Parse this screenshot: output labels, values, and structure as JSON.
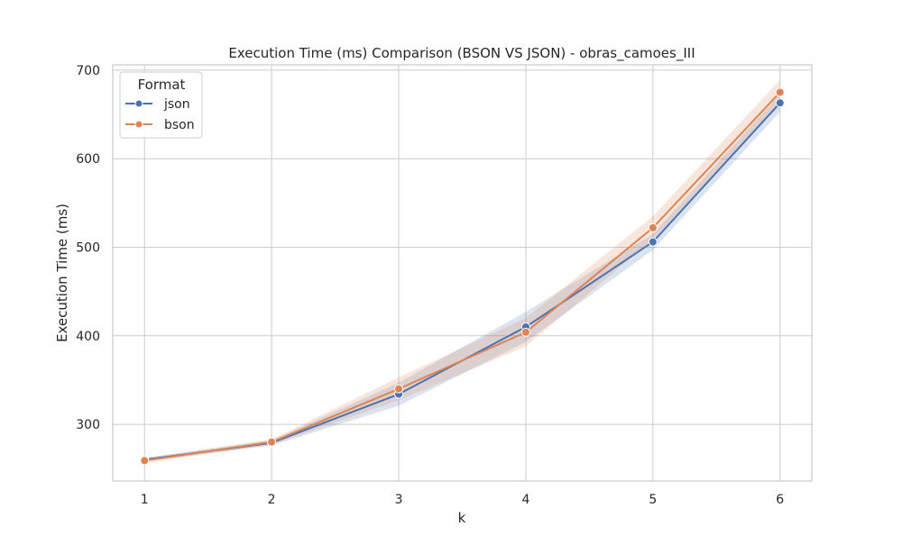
{
  "chart_data": {
    "type": "line",
    "title": "Execution Time (ms) Comparison (BSON VS JSON) - obras_camoes_III",
    "xlabel": "k",
    "ylabel": "Execution Time (ms)",
    "x": [
      1,
      2,
      3,
      4,
      5,
      6
    ],
    "xticks": [
      "1",
      "2",
      "3",
      "4",
      "5",
      "6"
    ],
    "yticks": [
      "300",
      "400",
      "500",
      "600",
      "700"
    ],
    "xlim": [
      0.75,
      6.25
    ],
    "ylim": [
      236,
      706
    ],
    "grid": true,
    "legend": {
      "title": "Format",
      "placement": "top-left"
    },
    "series": [
      {
        "name": "json",
        "color": "#4c72b0",
        "values": [
          260,
          279,
          334,
          410,
          506,
          663
        ],
        "ci_low": [
          258,
          276,
          321,
          393,
          497,
          653
        ],
        "ci_high": [
          262,
          282,
          347,
          427,
          515,
          673
        ]
      },
      {
        "name": "bson",
        "color": "#dd8452",
        "values": [
          259,
          280,
          340,
          404,
          522,
          675
        ],
        "ci_low": [
          256,
          277,
          327,
          388,
          509,
          661
        ],
        "ci_high": [
          262,
          283,
          353,
          420,
          535,
          689
        ]
      }
    ]
  }
}
